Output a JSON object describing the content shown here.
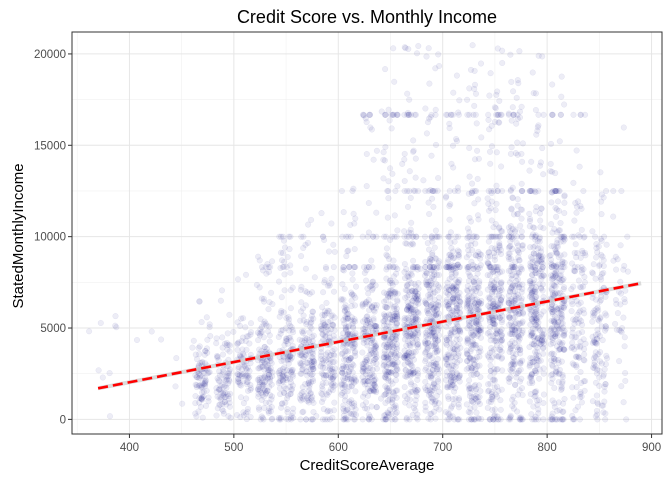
{
  "chart_data": {
    "type": "scatter",
    "title": "Credit Score vs. Monthly Income",
    "xlabel": "CreditScoreAverage",
    "ylabel": "StatedMonthlyIncome",
    "xlim": [
      345,
      910
    ],
    "ylim": [
      -800,
      21200
    ],
    "x_ticks": [
      400,
      500,
      600,
      700,
      800,
      900
    ],
    "y_ticks": [
      0,
      5000,
      10000,
      15000,
      20000
    ],
    "grid": true,
    "point_color": "#000080",
    "point_alpha": 0.07,
    "x_score_levels": [
      470,
      490,
      510,
      530,
      550,
      570,
      590,
      610,
      630,
      650,
      670,
      690,
      710,
      730,
      750,
      770,
      790,
      810,
      830,
      850,
      870
    ],
    "density_profile": [
      {
        "x": 470,
        "y_typical": 2000,
        "y_high": 6500
      },
      {
        "x": 530,
        "y_typical": 2800,
        "y_high": 9000
      },
      {
        "x": 570,
        "y_typical": 3200,
        "y_high": 11000
      },
      {
        "x": 600,
        "y_typical": 3500,
        "y_high": 11500
      },
      {
        "x": 650,
        "y_typical": 4300,
        "y_high": 20500
      },
      {
        "x": 700,
        "y_typical": 5000,
        "y_high": 20500
      },
      {
        "x": 750,
        "y_typical": 5600,
        "y_high": 20500
      },
      {
        "x": 800,
        "y_typical": 6000,
        "y_high": 20500
      },
      {
        "x": 850,
        "y_typical": 5500,
        "y_high": 16000
      }
    ],
    "trend_line": {
      "x": [
        370,
        890
      ],
      "y": [
        1700,
        7450
      ],
      "style": "dashed",
      "color": "#ff0000"
    }
  }
}
